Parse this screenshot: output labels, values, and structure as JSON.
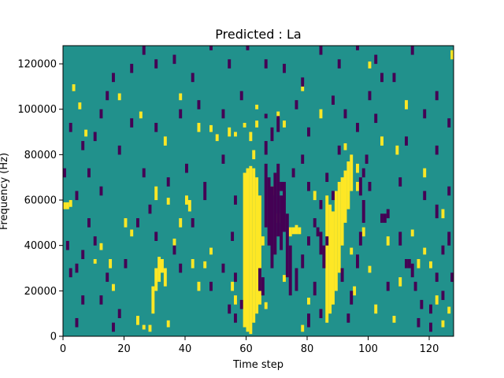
{
  "chart_data": {
    "type": "heatmap",
    "title": "Predicted : La",
    "xlabel": "Time step",
    "ylabel": "Frequency (Hz)",
    "xlim": [
      0,
      128
    ],
    "ylim": [
      0,
      128000
    ],
    "x_ticks": [
      0,
      20,
      40,
      60,
      80,
      100,
      120
    ],
    "y_ticks": [
      0,
      20000,
      40000,
      60000,
      80000,
      100000,
      120000
    ],
    "x_tick_labels": [
      "0",
      "20",
      "40",
      "60",
      "80",
      "100",
      "120"
    ],
    "y_tick_labels": [
      "0",
      "20000",
      "40000",
      "60000",
      "80000",
      "100000",
      "120000"
    ],
    "n_time_steps": 128,
    "n_freq_bins": 128,
    "bin_width_hz": 1000,
    "levels": {
      "low": -1,
      "mid": 0,
      "high": 1
    },
    "colors": {
      "low": "#440154",
      "mid": "#21918c",
      "high": "#fde725"
    },
    "high_cells": [
      [
        59,
        4,
        72
      ],
      [
        60,
        2,
        74
      ],
      [
        61,
        1,
        75
      ],
      [
        62,
        6,
        74
      ],
      [
        63,
        10,
        70
      ],
      [
        64,
        14,
        62
      ],
      [
        62,
        78,
        82
      ],
      [
        61,
        86,
        90
      ],
      [
        63,
        92,
        95
      ],
      [
        63,
        100,
        102
      ],
      [
        59,
        92,
        94
      ],
      [
        56,
        88,
        90
      ],
      [
        86,
        6,
        62
      ],
      [
        87,
        10,
        58
      ],
      [
        88,
        14,
        55
      ],
      [
        89,
        20,
        64
      ],
      [
        90,
        28,
        68
      ],
      [
        91,
        40,
        70
      ],
      [
        92,
        50,
        73
      ],
      [
        93,
        56,
        77
      ],
      [
        94,
        64,
        80
      ],
      [
        92,
        82,
        85
      ],
      [
        74,
        44,
        48
      ],
      [
        75,
        45,
        48
      ],
      [
        76,
        45,
        49
      ],
      [
        77,
        45,
        48
      ],
      [
        29,
        10,
        22
      ],
      [
        30,
        20,
        30
      ],
      [
        31,
        24,
        35
      ],
      [
        32,
        28,
        34
      ],
      [
        33,
        22,
        30
      ],
      [
        40,
        58,
        62
      ],
      [
        41,
        55,
        60
      ],
      [
        30,
        60,
        66
      ],
      [
        34,
        58,
        61
      ],
      [
        55,
        20,
        24
      ],
      [
        56,
        14,
        18
      ],
      [
        0,
        56,
        59
      ],
      [
        1,
        56,
        59
      ],
      [
        2,
        57,
        60
      ],
      [
        20,
        48,
        52
      ],
      [
        15,
        30,
        34
      ],
      [
        24,
        5,
        9
      ],
      [
        26,
        3,
        5
      ],
      [
        42,
        30,
        34
      ],
      [
        48,
        36,
        39
      ],
      [
        65,
        40,
        44
      ],
      [
        68,
        62,
        66
      ],
      [
        70,
        50,
        54
      ],
      [
        78,
        2,
        5
      ],
      [
        82,
        60,
        64
      ],
      [
        95,
        18,
        22
      ],
      [
        98,
        44,
        48
      ],
      [
        100,
        28,
        31
      ],
      [
        102,
        10,
        14
      ],
      [
        106,
        40,
        44
      ],
      [
        110,
        22,
        26
      ],
      [
        116,
        30,
        34
      ],
      [
        118,
        36,
        39
      ],
      [
        122,
        14,
        18
      ],
      [
        124,
        52,
        56
      ],
      [
        127,
        122,
        126
      ],
      [
        104,
        84,
        88
      ],
      [
        109,
        80,
        84
      ],
      [
        100,
        118,
        121
      ],
      [
        112,
        100,
        104
      ],
      [
        118,
        70,
        74
      ],
      [
        10,
        32,
        34
      ],
      [
        7,
        88,
        91
      ],
      [
        5,
        100,
        103
      ],
      [
        3,
        108,
        111
      ],
      [
        18,
        104,
        107
      ],
      [
        25,
        96,
        99
      ],
      [
        33,
        84,
        88
      ],
      [
        38,
        104,
        107
      ],
      [
        44,
        90,
        94
      ],
      [
        48,
        90,
        93
      ],
      [
        50,
        86,
        89
      ],
      [
        54,
        88,
        92
      ],
      [
        70,
        96,
        99
      ],
      [
        72,
        92,
        95
      ],
      [
        78,
        108,
        111
      ],
      [
        84,
        96,
        100
      ],
      [
        96,
        64,
        68
      ],
      [
        96,
        72,
        76
      ],
      [
        12,
        38,
        41
      ],
      [
        28,
        2,
        5
      ],
      [
        34,
        4,
        7
      ],
      [
        36,
        40,
        43
      ],
      [
        44,
        20,
        24
      ],
      [
        46,
        30,
        33
      ],
      [
        38,
        48,
        52
      ],
      [
        22,
        44,
        47
      ],
      [
        16,
        20,
        23
      ],
      [
        66,
        12,
        15
      ],
      [
        72,
        24,
        27
      ],
      [
        80,
        14,
        17
      ],
      [
        94,
        36,
        39
      ],
      [
        108,
        6,
        9
      ],
      [
        114,
        44,
        47
      ],
      [
        120,
        30,
        33
      ],
      [
        124,
        4,
        7
      ],
      [
        126,
        10,
        13
      ]
    ],
    "low_cells": [
      [
        66,
        48,
        76
      ],
      [
        67,
        40,
        70
      ],
      [
        68,
        30,
        66
      ],
      [
        69,
        36,
        72
      ],
      [
        70,
        44,
        76
      ],
      [
        71,
        38,
        62
      ],
      [
        72,
        46,
        68
      ],
      [
        73,
        26,
        54
      ],
      [
        74,
        18,
        40
      ],
      [
        65,
        18,
        26
      ],
      [
        64,
        20,
        30
      ],
      [
        66,
        80,
        86
      ],
      [
        68,
        86,
        92
      ],
      [
        70,
        90,
        97
      ],
      [
        66,
        96,
        98
      ],
      [
        80,
        40,
        44
      ],
      [
        82,
        48,
        52
      ],
      [
        83,
        44,
        48
      ],
      [
        84,
        36,
        46
      ],
      [
        85,
        30,
        40
      ],
      [
        86,
        40,
        44
      ],
      [
        76,
        20,
        30
      ],
      [
        78,
        30,
        36
      ],
      [
        80,
        4,
        10
      ],
      [
        82,
        18,
        24
      ],
      [
        84,
        8,
        12
      ],
      [
        96,
        30,
        36
      ],
      [
        97,
        40,
        46
      ],
      [
        98,
        50,
        60
      ],
      [
        97,
        62,
        70
      ],
      [
        98,
        70,
        74
      ],
      [
        99,
        76,
        80
      ],
      [
        94,
        14,
        20
      ],
      [
        93,
        6,
        10
      ],
      [
        91,
        24,
        30
      ],
      [
        100,
        64,
        68
      ],
      [
        104,
        50,
        54
      ],
      [
        105,
        50,
        54
      ],
      [
        106,
        52,
        56
      ],
      [
        110,
        40,
        46
      ],
      [
        112,
        30,
        34
      ],
      [
        113,
        30,
        34
      ],
      [
        114,
        26,
        32
      ],
      [
        115,
        20,
        24
      ],
      [
        117,
        12,
        16
      ],
      [
        120,
        10,
        14
      ],
      [
        122,
        24,
        28
      ],
      [
        124,
        36,
        40
      ],
      [
        126,
        40,
        46
      ],
      [
        127,
        24,
        28
      ],
      [
        122,
        52,
        58
      ],
      [
        118,
        60,
        64
      ],
      [
        126,
        62,
        66
      ],
      [
        110,
        66,
        70
      ],
      [
        56,
        6,
        10
      ],
      [
        58,
        12,
        16
      ],
      [
        56,
        24,
        28
      ],
      [
        55,
        42,
        46
      ],
      [
        56,
        58,
        62
      ],
      [
        54,
        10,
        14
      ],
      [
        52,
        28,
        32
      ],
      [
        48,
        20,
        24
      ],
      [
        46,
        64,
        68
      ],
      [
        42,
        48,
        52
      ],
      [
        38,
        28,
        32
      ],
      [
        36,
        36,
        40
      ],
      [
        30,
        42,
        46
      ],
      [
        28,
        54,
        58
      ],
      [
        24,
        48,
        52
      ],
      [
        20,
        30,
        34
      ],
      [
        18,
        8,
        12
      ],
      [
        16,
        2,
        6
      ],
      [
        14,
        24,
        28
      ],
      [
        12,
        14,
        18
      ],
      [
        10,
        40,
        44
      ],
      [
        8,
        48,
        52
      ],
      [
        6,
        34,
        38
      ],
      [
        4,
        28,
        32
      ],
      [
        2,
        26,
        30
      ],
      [
        1,
        38,
        42
      ],
      [
        4,
        4,
        8
      ],
      [
        6,
        14,
        18
      ],
      [
        8,
        70,
        74
      ],
      [
        10,
        86,
        90
      ],
      [
        12,
        96,
        100
      ],
      [
        14,
        104,
        108
      ],
      [
        16,
        112,
        116
      ],
      [
        22,
        116,
        120
      ],
      [
        26,
        124,
        128
      ],
      [
        30,
        118,
        122
      ],
      [
        36,
        120,
        124
      ],
      [
        42,
        112,
        116
      ],
      [
        48,
        126,
        128
      ],
      [
        54,
        118,
        122
      ],
      [
        60,
        126,
        128
      ],
      [
        66,
        118,
        122
      ],
      [
        72,
        116,
        120
      ],
      [
        78,
        110,
        114
      ],
      [
        84,
        124,
        128
      ],
      [
        90,
        118,
        122
      ],
      [
        96,
        126,
        128
      ],
      [
        102,
        120,
        124
      ],
      [
        108,
        112,
        116
      ],
      [
        114,
        124,
        128
      ],
      [
        118,
        96,
        100
      ],
      [
        122,
        104,
        108
      ],
      [
        126,
        92,
        96
      ],
      [
        122,
        80,
        84
      ],
      [
        112,
        84,
        88
      ],
      [
        102,
        94,
        98
      ],
      [
        88,
        102,
        106
      ],
      [
        80,
        88,
        92
      ],
      [
        76,
        100,
        104
      ],
      [
        58,
        104,
        108
      ],
      [
        52,
        96,
        100
      ],
      [
        44,
        100,
        104
      ],
      [
        38,
        96,
        100
      ],
      [
        30,
        90,
        94
      ],
      [
        22,
        92,
        96
      ],
      [
        18,
        80,
        84
      ],
      [
        12,
        62,
        66
      ],
      [
        6,
        82,
        86
      ],
      [
        2,
        90,
        94
      ],
      [
        0,
        70,
        74
      ],
      [
        4,
        60,
        64
      ],
      [
        26,
        70,
        74
      ],
      [
        34,
        66,
        70
      ],
      [
        40,
        72,
        76
      ],
      [
        46,
        60,
        64
      ],
      [
        52,
        76,
        80
      ],
      [
        88,
        60,
        64
      ],
      [
        92,
        96,
        100
      ],
      [
        106,
        20,
        24
      ],
      [
        116,
        4,
        8
      ],
      [
        120,
        2,
        6
      ],
      [
        124,
        16,
        20
      ],
      [
        72,
        60,
        64
      ],
      [
        71,
        64,
        68
      ],
      [
        75,
        70,
        74
      ],
      [
        78,
        76,
        80
      ],
      [
        80,
        64,
        68
      ],
      [
        84,
        56,
        60
      ],
      [
        86,
        68,
        72
      ],
      [
        90,
        80,
        84
      ],
      [
        96,
        90,
        94
      ],
      [
        100,
        104,
        108
      ],
      [
        104,
        112,
        116
      ]
    ]
  }
}
